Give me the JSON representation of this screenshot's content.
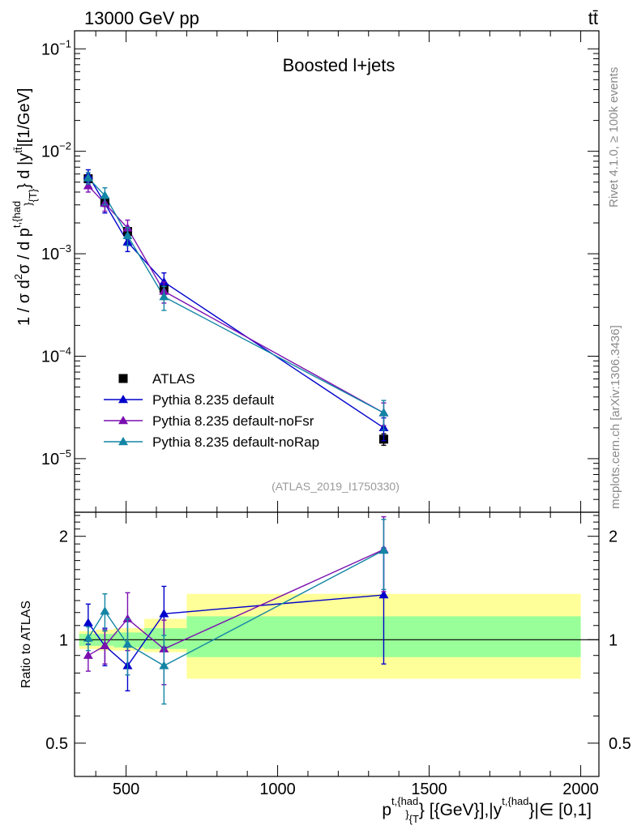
{
  "header": {
    "left_title": "13000 GeV pp",
    "right_title": "tt̄"
  },
  "side_text": {
    "rivet": "Rivet 4.1.0, ≥ 100k events",
    "mcplots": "mcplots.cern.ch [arXiv:1306.3436]"
  },
  "colors": {
    "data": "#000000",
    "default": "#0000cc",
    "noFsr": "#7a0fb0",
    "noRap": "#1385a5",
    "band_inner": "#99ff99",
    "band_outer": "#ffff99"
  },
  "chart_data": [
    {
      "type": "scatter",
      "panel": "main",
      "title": "Boosted l+jets",
      "reference": "(ATLAS_2019_I1750330)",
      "ylabel_parts": {
        "base": "1 / σ d",
        "sup1": "2",
        "mid": "σ / d p",
        "sup2": "t,{had",
        "sub2": "}",
        "sub3": "{T}",
        "tail": "} d |y",
        "sup3": "tt̄",
        "end": "|[1/GeV]"
      },
      "yscale": "log",
      "ylim": [
        3e-06,
        0.15
      ],
      "xlim": [
        330,
        2060
      ],
      "yticks": [
        {
          "value": 1e-05,
          "mant": "10",
          "exp": "−5"
        },
        {
          "value": 0.0001,
          "mant": "10",
          "exp": "−4"
        },
        {
          "value": 0.001,
          "mant": "10",
          "exp": "−3"
        },
        {
          "value": 0.01,
          "mant": "10",
          "exp": "−2"
        },
        {
          "value": 0.1,
          "mant": "10",
          "exp": "−1"
        }
      ],
      "legend_position": "lower-left",
      "series": [
        {
          "name": "ATLAS",
          "key": "data",
          "marker": "square",
          "x": [
            375,
            430,
            505,
            625,
            1350
          ],
          "y": [
            0.0054,
            0.0032,
            0.00165,
            0.00046,
            1.55e-05
          ],
          "yerr": [
            0.0003,
            0.0003,
            0.00015,
            6e-05,
            2e-06
          ]
        },
        {
          "name": "Pythia 8.235 default",
          "key": "default",
          "marker": "triangle",
          "x": [
            375,
            430,
            505,
            625,
            1350
          ],
          "y": [
            0.0058,
            0.0031,
            0.0013,
            0.00053,
            2e-05
          ],
          "yerr": [
            0.0008,
            0.0006,
            0.00025,
            0.00012,
            5e-06
          ]
        },
        {
          "name": "Pythia 8.235 default-noFsr",
          "key": "noFsr",
          "marker": "triangle",
          "x": [
            375,
            430,
            505,
            625,
            1350
          ],
          "y": [
            0.0046,
            0.0031,
            0.00178,
            0.00043,
            2.8e-05
          ],
          "yerr": [
            0.0006,
            0.0005,
            0.00035,
            0.0001,
            7e-06
          ]
        },
        {
          "name": "Pythia 8.235 default-noRap",
          "key": "noRap",
          "marker": "triangle",
          "x": [
            375,
            430,
            505,
            625,
            1350
          ],
          "y": [
            0.0055,
            0.0037,
            0.0015,
            0.00038,
            2.8e-05
          ],
          "yerr": [
            0.0007,
            0.0007,
            0.0003,
            0.0001,
            9e-06
          ]
        }
      ]
    },
    {
      "type": "line",
      "panel": "ratio",
      "ylabel": "Ratio to ATLAS",
      "yscale": "log",
      "ylim": [
        0.4,
        2.35
      ],
      "xlim": [
        330,
        2060
      ],
      "reference_line": 1,
      "yticks": [
        {
          "value": 0.5,
          "label": "0.5"
        },
        {
          "value": 1,
          "label": "1"
        },
        {
          "value": 2,
          "label": "2"
        }
      ],
      "xticks": [
        {
          "value": 500,
          "label": "500"
        },
        {
          "value": 1000,
          "label": "1000"
        },
        {
          "value": 1500,
          "label": "1500"
        },
        {
          "value": 2000,
          "label": "2000"
        }
      ],
      "xlabel_parts": {
        "p": "p",
        "sup1": "t,{had",
        "sub1": "}",
        "sub2": "{T",
        "mid": "} [{GeV}],|y",
        "sup2": "t,{had",
        "end": "}|∈ [0,1]"
      },
      "bands": [
        {
          "x0": 345,
          "x1": 400,
          "inner": [
            0.96,
            1.04
          ],
          "outer": [
            0.94,
            1.06
          ]
        },
        {
          "x0": 400,
          "x1": 460,
          "inner": [
            0.96,
            1.04
          ],
          "outer": [
            0.93,
            1.07
          ]
        },
        {
          "x0": 460,
          "x1": 560,
          "inner": [
            0.95,
            1.05
          ],
          "outer": [
            0.93,
            1.08
          ]
        },
        {
          "x0": 560,
          "x1": 700,
          "inner": [
            0.94,
            1.08
          ],
          "outer": [
            0.92,
            1.15
          ]
        },
        {
          "x0": 700,
          "x1": 2000,
          "inner": [
            0.89,
            1.17
          ],
          "outer": [
            0.77,
            1.36
          ]
        }
      ],
      "series": [
        {
          "name": "Pythia 8.235 default",
          "key": "default",
          "x": [
            375,
            430,
            505,
            625,
            1350
          ],
          "y": [
            1.12,
            0.96,
            0.84,
            1.19,
            1.35
          ],
          "yerr": [
            0.15,
            0.12,
            0.13,
            0.24,
            0.5
          ]
        },
        {
          "name": "Pythia 8.235 default-noFsr",
          "key": "noFsr",
          "x": [
            375,
            430,
            505,
            625,
            1350
          ],
          "y": [
            0.9,
            0.96,
            1.15,
            0.94,
            1.83
          ],
          "yerr": [
            0.09,
            0.11,
            0.22,
            0.2,
            0.45
          ]
        },
        {
          "name": "Pythia 8.235 default-noRap",
          "key": "noRap",
          "x": [
            375,
            430,
            505,
            625,
            1350
          ],
          "y": [
            1.01,
            1.21,
            0.97,
            0.84,
            1.82
          ],
          "yerr": [
            0.08,
            0.15,
            0.18,
            0.19,
            0.42
          ]
        }
      ]
    }
  ]
}
